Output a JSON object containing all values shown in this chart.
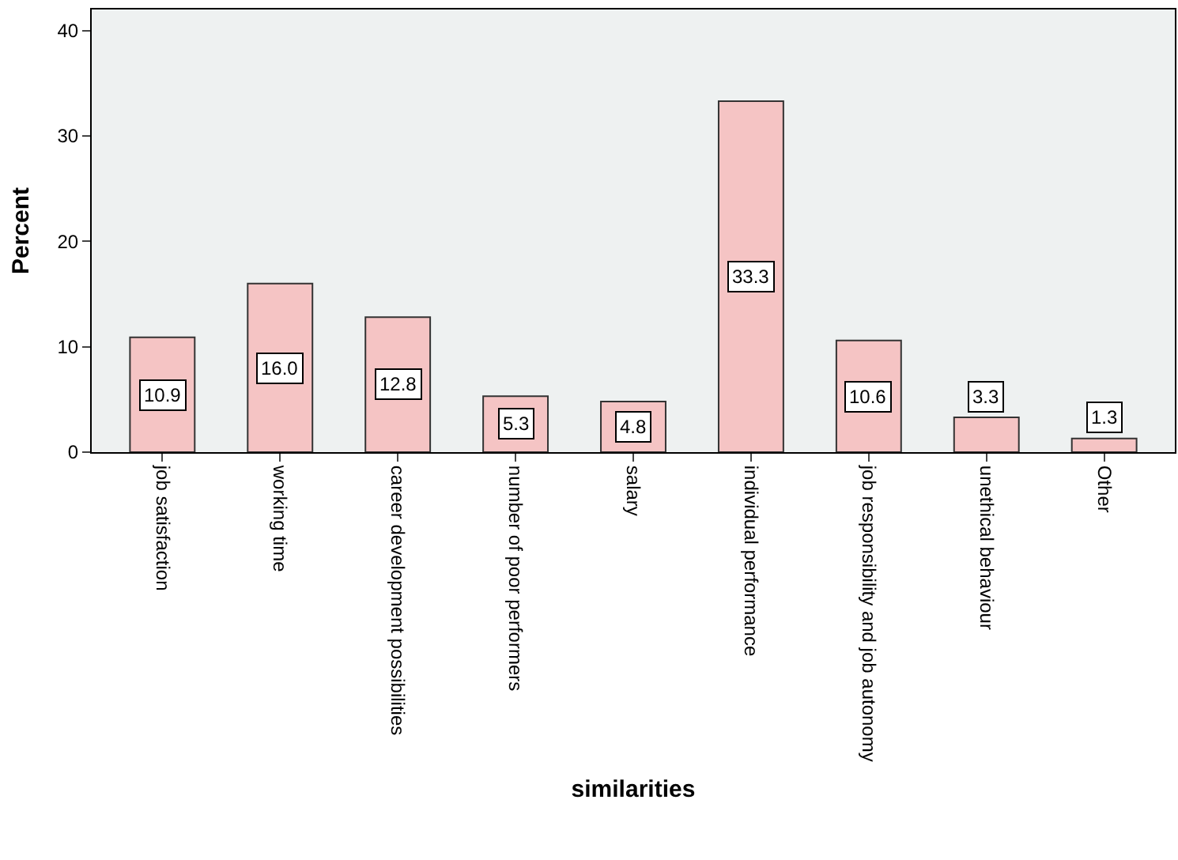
{
  "chart_data": {
    "type": "bar",
    "xlabel": "similarities",
    "ylabel": "Percent",
    "categories": [
      "job satisfaction",
      "working time",
      "career development possibilities",
      "number of poor performers",
      "salary",
      "individual performance",
      "job responsibility and job autonomy",
      "unethical behaviour",
      "Other"
    ],
    "values": [
      10.9,
      16.0,
      12.8,
      5.3,
      4.8,
      33.3,
      10.6,
      3.3,
      1.3
    ],
    "value_labels": [
      "10.9",
      "16.0",
      "12.8",
      "5.3",
      "4.8",
      "33.3",
      "10.6",
      "3.3",
      "1.3"
    ],
    "color": "#f5c4c4",
    "ylim": [
      0,
      42
    ],
    "yticks": [
      0,
      10,
      20,
      30,
      40
    ],
    "grid": false,
    "legend": false
  }
}
